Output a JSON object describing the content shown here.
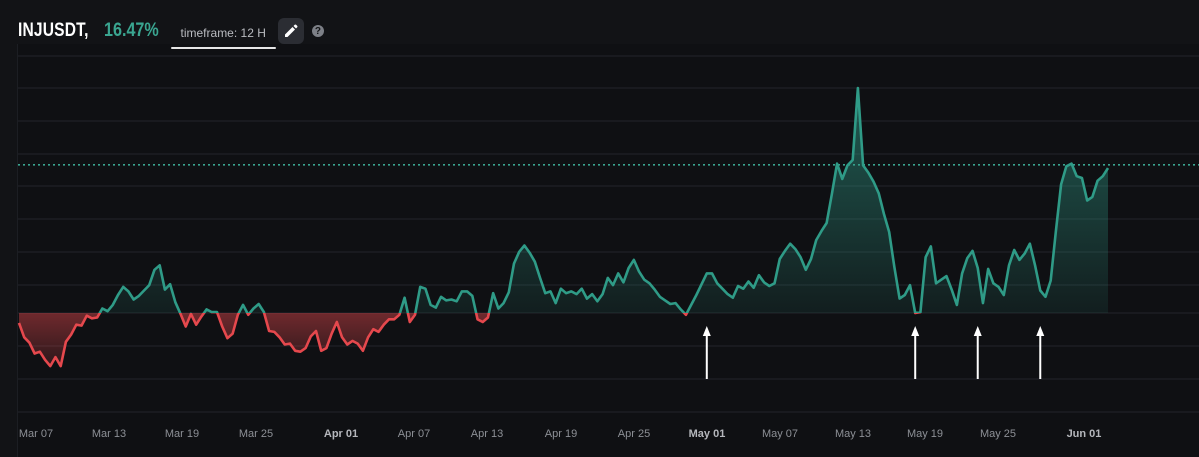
{
  "header": {
    "symbol": "INJUSDT,",
    "change": "16.47%",
    "timeframe_label": "timeframe: 12 H",
    "edit_icon": "pencil-icon",
    "help_icon": "question-icon",
    "help_glyph": "?"
  },
  "colors": {
    "positive": "#2f9b87",
    "negative": "#e5484d",
    "background": "#0f1013",
    "grid": "#23252b"
  },
  "chart_data": {
    "type": "area",
    "title": "",
    "xlabel": "",
    "ylabel": "",
    "baseline": 0,
    "reference_line_value": 16.47,
    "ylim": [
      -9,
      28
    ],
    "grid": true,
    "x_ticks": [
      {
        "label": "Mar 07",
        "bold": false
      },
      {
        "label": "Mar 13",
        "bold": false
      },
      {
        "label": "Mar 19",
        "bold": false
      },
      {
        "label": "Mar 25",
        "bold": false
      },
      {
        "label": "Apr 01",
        "bold": true
      },
      {
        "label": "Apr 07",
        "bold": false
      },
      {
        "label": "Apr 13",
        "bold": false
      },
      {
        "label": "Apr 19",
        "bold": false
      },
      {
        "label": "Apr 25",
        "bold": false
      },
      {
        "label": "May 01",
        "bold": true
      },
      {
        "label": "May 07",
        "bold": false
      },
      {
        "label": "May 13",
        "bold": false
      },
      {
        "label": "May 19",
        "bold": false
      },
      {
        "label": "May 25",
        "bold": false
      },
      {
        "label": "Jun 01",
        "bold": true
      }
    ],
    "series": [
      {
        "values": [
          -1.1,
          -2.7,
          -3.3,
          -4.5,
          -4.3,
          -5.2,
          -5.9,
          -4.9,
          -5.9,
          -3.2,
          -2.4,
          -1.3,
          -1.4,
          -0.3,
          -0.6,
          -0.5,
          0.5,
          0.2,
          0.9,
          2.0,
          2.9,
          2.4,
          1.5,
          1.9,
          2.5,
          3.1,
          4.8,
          5.3,
          2.6,
          3.2,
          1.2,
          -0.1,
          -1.5,
          -0.1,
          -1.3,
          -0.4,
          0.4,
          0.1,
          0.1,
          -1.5,
          -2.8,
          -2.3,
          -0.2,
          0.9,
          -0.2,
          0.5,
          1.0,
          0.1,
          -2.0,
          -2.1,
          -2.7,
          -3.5,
          -3.4,
          -4.2,
          -4.3,
          -3.9,
          -2.6,
          -2.0,
          -4.2,
          -3.9,
          -2.3,
          -1.0,
          -2.7,
          -3.5,
          -3.1,
          -3.4,
          -4.2,
          -2.7,
          -1.8,
          -2.1,
          -1.3,
          -0.7,
          -0.7,
          -0.2,
          1.7,
          -1.0,
          -0.2,
          2.9,
          2.7,
          0.9,
          0.6,
          1.8,
          1.4,
          1.5,
          1.3,
          2.4,
          2.4,
          1.9,
          -0.7,
          -1.0,
          -0.5,
          2.2,
          0.5,
          1.1,
          2.3,
          5.5,
          6.8,
          7.5,
          6.7,
          5.7,
          3.9,
          2.2,
          2.4,
          1.1,
          2.7,
          2.2,
          2.4,
          2.1,
          2.7,
          1.6,
          2.1,
          1.3,
          2.1,
          3.9,
          3.1,
          4.4,
          3.4,
          5.0,
          5.9,
          4.6,
          3.7,
          3.3,
          2.6,
          1.8,
          1.4,
          1.0,
          1.1,
          0.4,
          -0.2,
          0.9,
          2.0,
          3.2,
          4.4,
          4.4,
          3.3,
          2.7,
          2.1,
          1.7,
          3.0,
          2.7,
          3.5,
          2.8,
          4.2,
          3.4,
          3.0,
          3.3,
          6.0,
          6.9,
          7.7,
          7.1,
          6.2,
          4.8,
          6.0,
          8.1,
          9.1,
          10.0,
          13.2,
          16.6,
          14.9,
          16.4,
          17.0,
          25.0,
          16.4,
          15.6,
          14.6,
          13.3,
          11.0,
          9.0,
          5.1,
          1.6,
          2.0,
          3.1,
          0.0,
          0.1,
          6.2,
          7.4,
          3.3,
          3.7,
          4.1,
          2.6,
          0.9,
          4.4,
          6.1,
          6.9,
          5.0,
          1.1,
          4.9,
          3.3,
          2.9,
          2.0,
          5.3,
          7.0,
          5.9,
          6.6,
          7.7,
          5.3,
          2.5,
          1.8,
          3.6,
          9.1,
          14.3,
          16.3,
          16.6,
          15.2,
          15.0,
          12.5,
          12.9,
          14.7,
          15.2,
          16.1
        ]
      }
    ],
    "markers": [
      {
        "label": "",
        "index": 132
      },
      {
        "label": "",
        "index": 172
      },
      {
        "label": "",
        "index": 184
      },
      {
        "label": "",
        "index": 196
      }
    ]
  }
}
